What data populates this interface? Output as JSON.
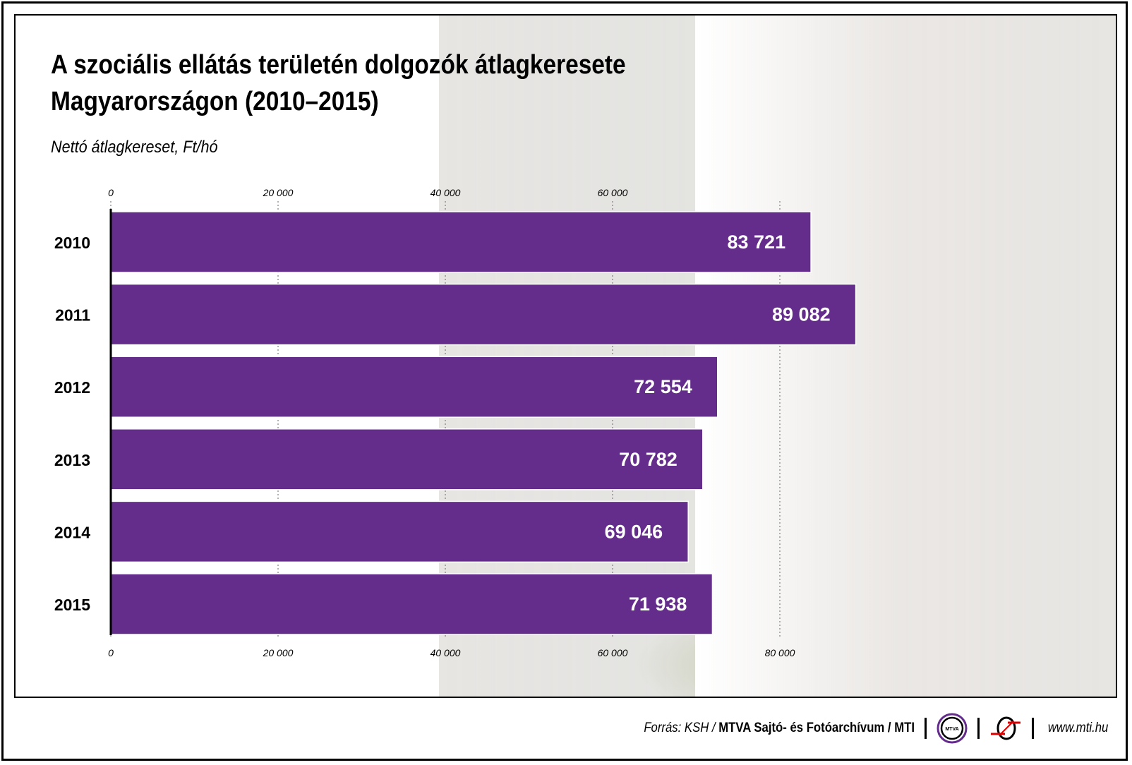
{
  "title_line1": "A szociális ellátás területén dolgozók átlagkeresete",
  "title_line2": "Magyarországon (2010–2015)",
  "subtitle": "Nettó átlagkereset, Ft/hó",
  "chart_data": {
    "type": "bar",
    "orientation": "horizontal",
    "title": "A szociális ellátás területén dolgozók átlagkeresete Magyarországon (2010–2015)",
    "subtitle": "Nettó átlagkereset, Ft/hó",
    "categories": [
      "2010",
      "2011",
      "2012",
      "2013",
      "2014",
      "2015"
    ],
    "values": [
      83721,
      89082,
      72554,
      70782,
      69046,
      71938
    ],
    "value_labels": [
      "83 721",
      "89 082",
      "72 554",
      "70 782",
      "69 046",
      "71 938"
    ],
    "xlim": [
      0,
      90000
    ],
    "ticks": [
      0,
      20000,
      40000,
      60000,
      80000
    ],
    "tick_labels": [
      "0",
      "20 000",
      "40 000",
      "60 000",
      "80 000"
    ],
    "grid": "dotted vertical",
    "bar_color": "#642D8C"
  },
  "footer": {
    "source_prefix": "Forrás: KSH / ",
    "source_bold": "MTVA Sajtó- és Fotóarchívum / MTI",
    "mtva_logo": "MTVA",
    "url": "www.mti.hu"
  }
}
